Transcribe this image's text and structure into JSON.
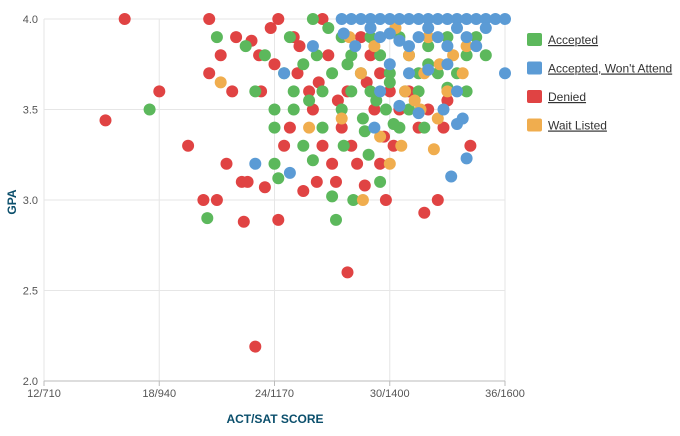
{
  "chart_data": {
    "type": "scatter",
    "xlabel": "ACT/SAT SCORE",
    "ylabel": "GPA",
    "x_ticks": [
      {
        "act": 12,
        "label": "12/710"
      },
      {
        "act": 18,
        "label": "18/940"
      },
      {
        "act": 24,
        "label": "24/1170"
      },
      {
        "act": 30,
        "label": "30/1400"
      },
      {
        "act": 36,
        "label": "36/1600"
      }
    ],
    "y_ticks": [
      {
        "value": 2.0,
        "label": "2.0"
      },
      {
        "value": 2.5,
        "label": "2.5"
      },
      {
        "value": 3.0,
        "label": "3.0"
      },
      {
        "value": 3.5,
        "label": "3.5"
      },
      {
        "value": 4.0,
        "label": "4.0"
      }
    ],
    "xlim": [
      12,
      36
    ],
    "ylim": [
      2.0,
      4.0
    ],
    "grid": true,
    "legend_position": "right",
    "series": [
      {
        "name": "Accepted",
        "color": "#5cb85c",
        "points": [
          [
            17.5,
            3.5
          ],
          [
            20.5,
            2.9
          ],
          [
            21,
            3.9
          ],
          [
            22.5,
            3.85
          ],
          [
            23,
            3.6
          ],
          [
            23.5,
            3.8
          ],
          [
            24,
            3.5
          ],
          [
            24,
            3.4
          ],
          [
            24,
            3.2
          ],
          [
            24.2,
            3.12
          ],
          [
            24.5,
            3.7
          ],
          [
            24.8,
            3.9
          ],
          [
            25,
            3.6
          ],
          [
            25,
            3.5
          ],
          [
            25.5,
            3.75
          ],
          [
            25.5,
            3.3
          ],
          [
            26,
            3.22
          ],
          [
            26,
            4.0
          ],
          [
            26.2,
            3.8
          ],
          [
            26.5,
            3.6
          ],
          [
            26.5,
            3.4
          ],
          [
            27,
            3.7
          ],
          [
            27,
            3.02
          ],
          [
            27.2,
            2.89
          ],
          [
            27.5,
            3.9
          ],
          [
            27.5,
            3.5
          ],
          [
            27.6,
            3.3
          ],
          [
            28,
            3.8
          ],
          [
            28,
            3.6
          ],
          [
            28.1,
            3.0
          ],
          [
            28.5,
            3.7
          ],
          [
            28.6,
            3.45
          ],
          [
            28.7,
            3.38
          ],
          [
            29,
            3.9
          ],
          [
            29,
            3.6
          ],
          [
            29.5,
            3.8
          ],
          [
            29.5,
            3.1
          ],
          [
            29.8,
            3.5
          ],
          [
            30,
            3.7
          ],
          [
            30,
            3.65
          ],
          [
            30.5,
            3.9
          ],
          [
            30.5,
            3.4
          ],
          [
            31,
            3.8
          ],
          [
            31,
            3.5
          ],
          [
            31.5,
            3.6
          ],
          [
            31.5,
            3.7
          ],
          [
            32,
            3.75
          ],
          [
            32,
            3.85
          ],
          [
            32.5,
            3.7
          ],
          [
            33,
            3.62
          ],
          [
            33,
            3.9
          ],
          [
            33.5,
            3.7
          ],
          [
            34,
            3.6
          ],
          [
            34,
            3.8
          ],
          [
            34.5,
            3.9
          ],
          [
            35,
            3.8
          ],
          [
            26.8,
            3.95
          ],
          [
            28.9,
            3.25
          ],
          [
            30.2,
            3.42
          ],
          [
            31.8,
            3.4
          ],
          [
            25.8,
            3.55
          ],
          [
            27.8,
            3.75
          ],
          [
            29.3,
            3.55
          ],
          [
            30.8,
            3.6
          ]
        ]
      },
      {
        "name": "Accepted, Won't Attend",
        "color": "#5b9bd5",
        "points": [
          [
            23,
            3.2
          ],
          [
            24.8,
            3.15
          ],
          [
            24.5,
            3.7
          ],
          [
            26,
            3.85
          ],
          [
            27.5,
            4.0
          ],
          [
            28,
            4.0
          ],
          [
            28.5,
            4.0
          ],
          [
            29,
            4.0
          ],
          [
            29.5,
            4.0
          ],
          [
            30,
            4.0
          ],
          [
            30.5,
            4.0
          ],
          [
            31,
            4.0
          ],
          [
            31.5,
            4.0
          ],
          [
            32,
            4.0
          ],
          [
            32.5,
            4.0
          ],
          [
            33,
            4.0
          ],
          [
            33.5,
            4.0
          ],
          [
            34,
            4.0
          ],
          [
            34.5,
            4.0
          ],
          [
            35,
            4.0
          ],
          [
            35.5,
            4.0
          ],
          [
            36,
            4.0
          ],
          [
            36,
            3.7
          ],
          [
            29,
            3.95
          ],
          [
            29.5,
            3.9
          ],
          [
            30,
            3.92
          ],
          [
            30.5,
            3.88
          ],
          [
            31,
            3.85
          ],
          [
            31.5,
            3.9
          ],
          [
            32,
            3.95
          ],
          [
            32.5,
            3.9
          ],
          [
            33,
            3.85
          ],
          [
            33.5,
            3.95
          ],
          [
            34,
            3.9
          ],
          [
            34.5,
            3.85
          ],
          [
            35,
            3.95
          ],
          [
            30,
            3.75
          ],
          [
            31,
            3.7
          ],
          [
            32,
            3.72
          ],
          [
            33,
            3.75
          ],
          [
            33.5,
            3.6
          ],
          [
            33.8,
            3.45
          ],
          [
            34,
            3.23
          ],
          [
            33.2,
            3.13
          ],
          [
            33.5,
            3.42
          ],
          [
            31.5,
            3.48
          ],
          [
            30.5,
            3.52
          ],
          [
            29.5,
            3.6
          ],
          [
            29.2,
            3.4
          ],
          [
            32.8,
            3.5
          ],
          [
            28.2,
            3.85
          ],
          [
            27.6,
            3.92
          ]
        ]
      },
      {
        "name": "Denied",
        "color": "#e04343",
        "points": [
          [
            15.2,
            3.44
          ],
          [
            16.2,
            4.0
          ],
          [
            18,
            3.6
          ],
          [
            19.5,
            3.3
          ],
          [
            20.3,
            3.0
          ],
          [
            20.6,
            4.0
          ],
          [
            20.6,
            3.7
          ],
          [
            21.2,
            3.8
          ],
          [
            21.5,
            3.2
          ],
          [
            21,
            3.0
          ],
          [
            21.8,
            3.6
          ],
          [
            22,
            3.9
          ],
          [
            22.3,
            3.1
          ],
          [
            22.6,
            3.1
          ],
          [
            22.4,
            2.88
          ],
          [
            23,
            2.19
          ],
          [
            23.3,
            3.6
          ],
          [
            23.5,
            3.07
          ],
          [
            23.2,
            3.8
          ],
          [
            23.8,
            3.95
          ],
          [
            24.2,
            4.0
          ],
          [
            24.2,
            2.89
          ],
          [
            24.5,
            3.3
          ],
          [
            24.8,
            3.4
          ],
          [
            25,
            3.9
          ],
          [
            25.2,
            3.7
          ],
          [
            25.5,
            3.05
          ],
          [
            25.8,
            3.6
          ],
          [
            26,
            3.5
          ],
          [
            26.2,
            3.1
          ],
          [
            26.5,
            4.0
          ],
          [
            26.5,
            3.3
          ],
          [
            26.8,
            3.8
          ],
          [
            27,
            3.2
          ],
          [
            27.2,
            3.1
          ],
          [
            27.5,
            3.4
          ],
          [
            27.8,
            3.6
          ],
          [
            27.8,
            2.6
          ],
          [
            28,
            3.3
          ],
          [
            28.3,
            3.2
          ],
          [
            28.5,
            3.9
          ],
          [
            28.7,
            3.08
          ],
          [
            29,
            3.8
          ],
          [
            29.2,
            3.5
          ],
          [
            29.5,
            3.7
          ],
          [
            29.5,
            3.2
          ],
          [
            29.8,
            3.0
          ],
          [
            30,
            3.6
          ],
          [
            30.2,
            3.3
          ],
          [
            30.5,
            3.5
          ],
          [
            31,
            3.6
          ],
          [
            31.5,
            3.4
          ],
          [
            32,
            3.5
          ],
          [
            31.8,
            2.93
          ],
          [
            32.5,
            3.0
          ],
          [
            32.8,
            3.4
          ],
          [
            33,
            3.55
          ],
          [
            34.2,
            3.3
          ],
          [
            25.3,
            3.85
          ],
          [
            26.3,
            3.65
          ],
          [
            27.3,
            3.55
          ],
          [
            28.8,
            3.65
          ],
          [
            29.7,
            3.35
          ],
          [
            24,
            3.75
          ],
          [
            22.8,
            3.88
          ]
        ]
      },
      {
        "name": "Wait Listed",
        "color": "#f0ad4e",
        "points": [
          [
            21.2,
            3.65
          ],
          [
            25.8,
            3.4
          ],
          [
            27.5,
            3.45
          ],
          [
            28.6,
            3.0
          ],
          [
            29.5,
            3.35
          ],
          [
            30,
            3.2
          ],
          [
            30.6,
            3.3
          ],
          [
            30.8,
            3.6
          ],
          [
            31,
            3.8
          ],
          [
            31.3,
            3.55
          ],
          [
            31.8,
            3.7
          ],
          [
            32,
            3.9
          ],
          [
            32.3,
            3.28
          ],
          [
            32.5,
            3.45
          ],
          [
            33,
            3.6
          ],
          [
            33.3,
            3.8
          ],
          [
            33.8,
            3.7
          ],
          [
            34,
            3.85
          ],
          [
            28.5,
            3.7
          ],
          [
            29.2,
            3.85
          ],
          [
            30.3,
            3.95
          ],
          [
            31.6,
            3.5
          ],
          [
            32.6,
            3.75
          ],
          [
            27.9,
            3.9
          ]
        ]
      }
    ]
  }
}
